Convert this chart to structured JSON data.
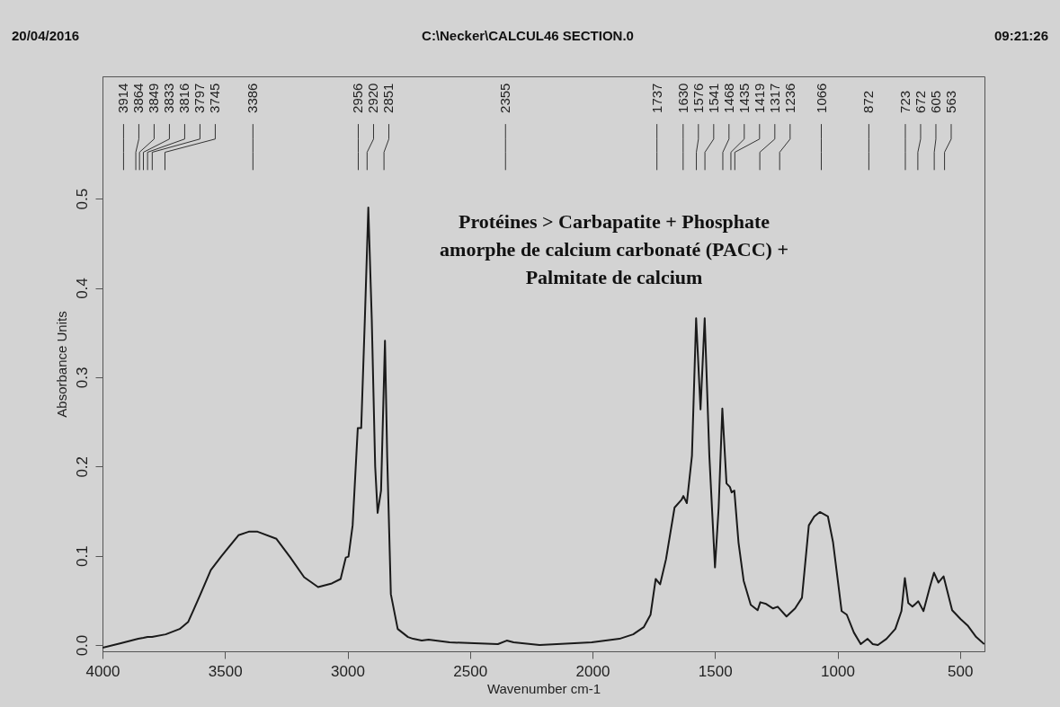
{
  "chart_data": {
    "type": "line",
    "title": "C:\\Necker\\CALCUL46 SECTION.0",
    "xlabel": "Wavenumber cm-1",
    "ylabel": "Absorbance Units",
    "annotations": [
      "20/04/2016",
      "09:21:26",
      "Protéines > Carbapatite + Phosphate\namorphe de calcium carbonaté (PACC) +\nPalmitate de calcium",
      {
        "text": "3914",
        "x": 3914
      },
      {
        "text": "3864",
        "x": 3864
      },
      {
        "text": "3849",
        "x": 3849
      },
      {
        "text": "3833",
        "x": 3833
      },
      {
        "text": "3816",
        "x": 3816
      },
      {
        "text": "3797",
        "x": 3797
      },
      {
        "text": "3745",
        "x": 3745
      },
      {
        "text": "3386",
        "x": 3386
      },
      {
        "text": "2956",
        "x": 2956
      },
      {
        "text": "2920",
        "x": 2920
      },
      {
        "text": "2851",
        "x": 2851
      },
      {
        "text": "2355",
        "x": 2355
      },
      {
        "text": "1737",
        "x": 1737
      },
      {
        "text": "1630",
        "x": 1630
      },
      {
        "text": "1576",
        "x": 1576
      },
      {
        "text": "1541",
        "x": 1541
      },
      {
        "text": "1468",
        "x": 1468
      },
      {
        "text": "1435",
        "x": 1435
      },
      {
        "text": "1419",
        "x": 1419
      },
      {
        "text": "1317",
        "x": 1317
      },
      {
        "text": "1236",
        "x": 1236
      },
      {
        "text": "1066",
        "x": 1066
      },
      {
        "text": "872",
        "x": 872
      },
      {
        "text": "723",
        "x": 723
      },
      {
        "text": "672",
        "x": 672
      },
      {
        "text": "605",
        "x": 605
      },
      {
        "text": "563",
        "x": 563
      }
    ],
    "xlim": [
      4000,
      400
    ],
    "xticks": [
      4000,
      3500,
      3000,
      2500,
      2000,
      1500,
      1000,
      500
    ],
    "ylim": [
      -0.007,
      0.637
    ],
    "yticks": [
      {
        "value": 0,
        "label": "0.0"
      },
      0.1,
      0.2,
      0.3,
      0.4,
      0.5
    ],
    "grid": false,
    "marker": "none",
    "line_style": "solid",
    "series": [
      {
        "color": "#1a1a1a",
        "x": [
          4000,
          3925,
          3854,
          3833,
          3816,
          3798,
          3742,
          3685,
          3650,
          3629,
          3600,
          3558,
          3516,
          3445,
          3403,
          3386,
          3367,
          3290,
          3233,
          3177,
          3120,
          3064,
          3028,
          3007,
          2996,
          2979,
          2958,
          2944,
          2929,
          2915,
          2901,
          2887,
          2877,
          2863,
          2847,
          2838,
          2823,
          2795,
          2753,
          2732,
          2697,
          2669,
          2583,
          2386,
          2350,
          2322,
          2216,
          2003,
          1890,
          1834,
          1791,
          1763,
          1742,
          1724,
          1700,
          1665,
          1636,
          1629,
          1615,
          1594,
          1577,
          1559,
          1542,
          1523,
          1500,
          1485,
          1470,
          1453,
          1439,
          1432,
          1421,
          1404,
          1383,
          1354,
          1326,
          1315,
          1291,
          1263,
          1244,
          1208,
          1173,
          1145,
          1117,
          1095,
          1072,
          1039,
          1018,
          983,
          962,
          933,
          905,
          877,
          856,
          835,
          800,
          764,
          739,
          725,
          711,
          694,
          670,
          649,
          623,
          606,
          588,
          567,
          532,
          497,
          469,
          434,
          401
        ],
        "values": [
          -0.003,
          0.002,
          0.007,
          0.008,
          0.009,
          0.009,
          0.012,
          0.018,
          0.026,
          0.039,
          0.057,
          0.084,
          0.099,
          0.123,
          0.127,
          0.127,
          0.127,
          0.119,
          0.098,
          0.076,
          0.065,
          0.069,
          0.074,
          0.098,
          0.099,
          0.134,
          0.243,
          0.243,
          0.366,
          0.49,
          0.366,
          0.2,
          0.148,
          0.173,
          0.341,
          0.212,
          0.057,
          0.018,
          0.009,
          0.007,
          0.005,
          0.006,
          0.003,
          0.001,
          0.005,
          0.003,
          0.0,
          0.003,
          0.007,
          0.012,
          0.02,
          0.034,
          0.074,
          0.068,
          0.096,
          0.154,
          0.163,
          0.167,
          0.159,
          0.212,
          0.366,
          0.264,
          0.366,
          0.212,
          0.087,
          0.154,
          0.265,
          0.181,
          0.177,
          0.171,
          0.173,
          0.115,
          0.072,
          0.045,
          0.039,
          0.048,
          0.046,
          0.041,
          0.043,
          0.032,
          0.041,
          0.053,
          0.134,
          0.144,
          0.149,
          0.144,
          0.115,
          0.038,
          0.034,
          0.014,
          0.001,
          0.007,
          0.001,
          0.0,
          0.007,
          0.018,
          0.038,
          0.075,
          0.047,
          0.043,
          0.049,
          0.038,
          0.065,
          0.081,
          0.07,
          0.077,
          0.039,
          0.029,
          0.022,
          0.009,
          0.001
        ]
      }
    ]
  }
}
